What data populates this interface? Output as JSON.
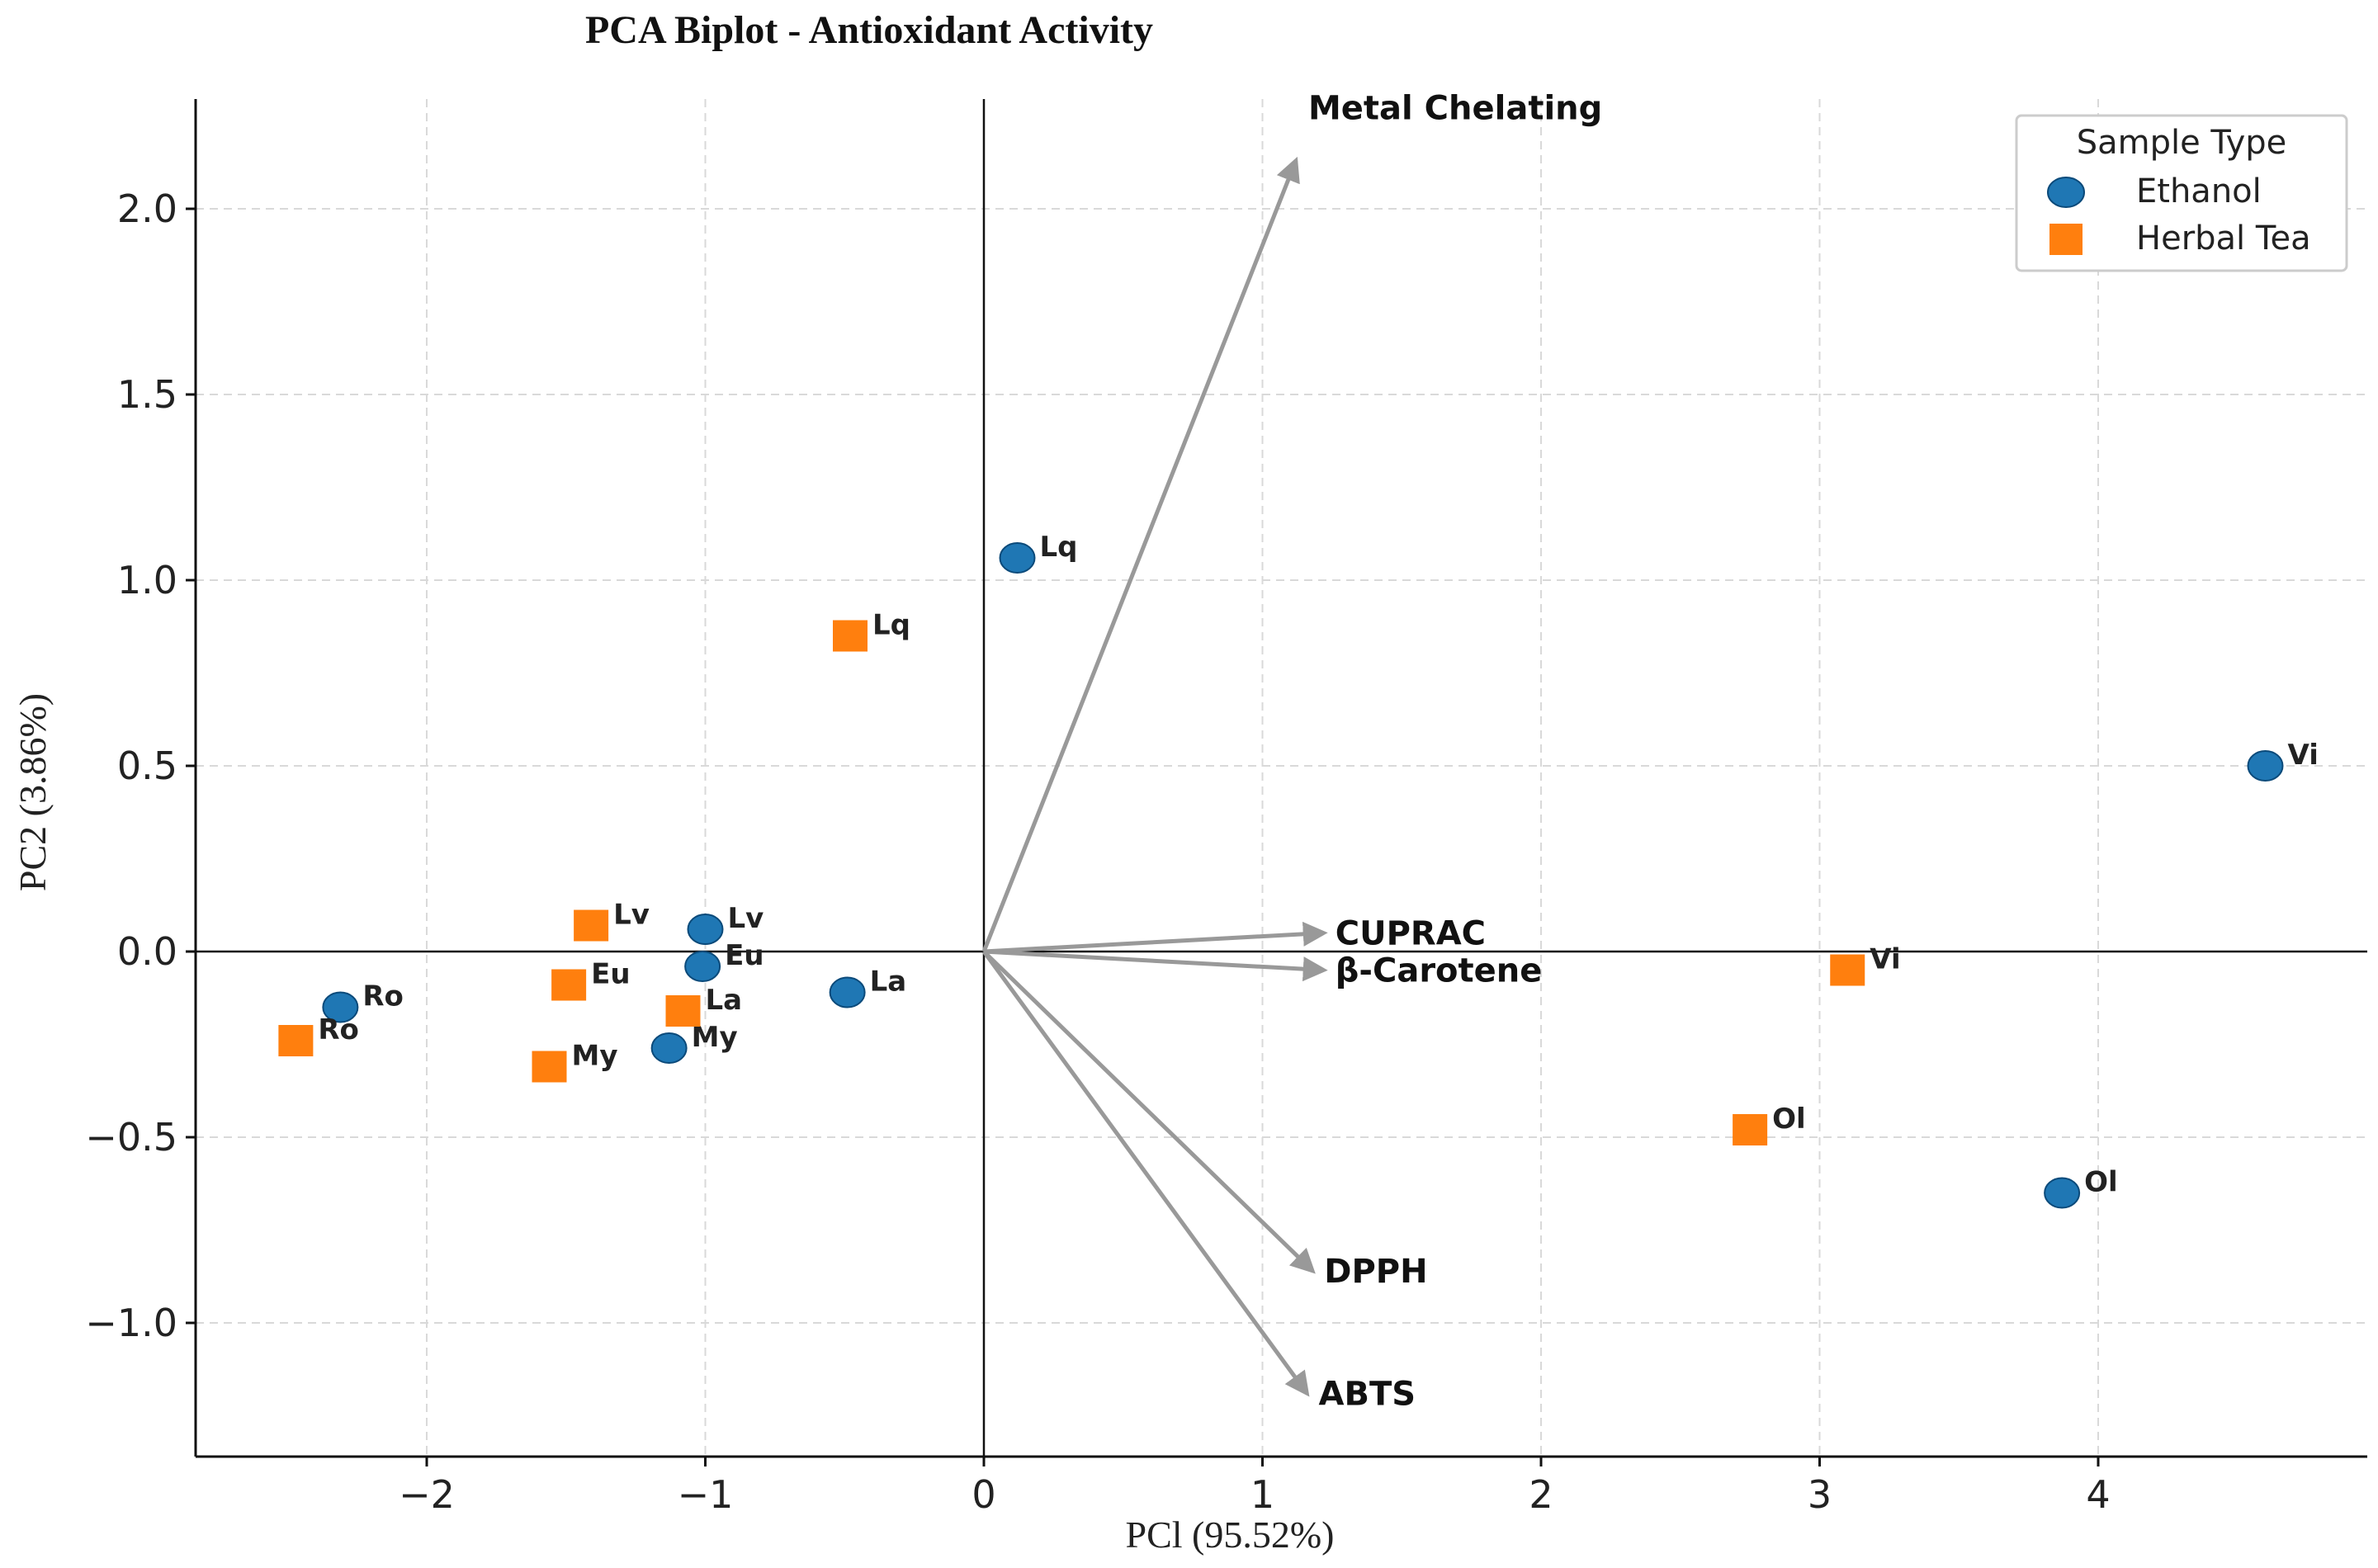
{
  "chart_data": {
    "type": "scatter",
    "subtype": "pca-biplot",
    "title": "PCA Biplot - Antioxidant Activity",
    "xlabel": "PCl (95.52%)",
    "ylabel": "PC2 (3.86%)",
    "xlim": [
      -2.8,
      5.0
    ],
    "ylim": [
      -1.35,
      2.3
    ],
    "xticks": [
      -2,
      -1,
      0,
      1,
      2,
      3,
      4
    ],
    "xtick_labels": [
      "−2",
      "−1",
      "0",
      "1",
      "2",
      "3",
      "4"
    ],
    "yticks": [
      -1.0,
      -0.5,
      0.0,
      0.5,
      1.0,
      1.5,
      2.0
    ],
    "ytick_labels": [
      "−1.0",
      "−0.5",
      "0.0",
      "0.5",
      "1.0",
      "1.5",
      "2.0"
    ],
    "grid": true,
    "legend": {
      "title": "Sample Type",
      "placement": "top-right",
      "entries": [
        {
          "name": "Ethanol",
          "marker": "circle",
          "color": "#1f77b4"
        },
        {
          "name": "Herbal Tea",
          "marker": "square",
          "color": "#ff7f0e"
        }
      ]
    },
    "series": [
      {
        "name": "Ethanol",
        "marker": "circle",
        "color": "#1f77b4",
        "points": [
          {
            "label": "Lq",
            "x": 0.12,
            "y": 1.06
          },
          {
            "label": "Vi",
            "x": 4.6,
            "y": 0.5
          },
          {
            "label": "Lv",
            "x": -1.0,
            "y": 0.06
          },
          {
            "label": "Eu",
            "x": -1.01,
            "y": -0.04
          },
          {
            "label": "La",
            "x": -0.49,
            "y": -0.11
          },
          {
            "label": "Ro",
            "x": -2.31,
            "y": -0.15
          },
          {
            "label": "My",
            "x": -1.13,
            "y": -0.26
          },
          {
            "label": "Ol",
            "x": 3.87,
            "y": -0.65
          }
        ]
      },
      {
        "name": "Herbal Tea",
        "marker": "square",
        "color": "#ff7f0e",
        "points": [
          {
            "label": "Lq",
            "x": -0.48,
            "y": 0.85
          },
          {
            "label": "Lv",
            "x": -1.41,
            "y": 0.07
          },
          {
            "label": "Eu",
            "x": -1.49,
            "y": -0.09
          },
          {
            "label": "La",
            "x": -1.08,
            "y": -0.16
          },
          {
            "label": "Ro",
            "x": -2.47,
            "y": -0.24
          },
          {
            "label": "My",
            "x": -1.56,
            "y": -0.31
          },
          {
            "label": "Vi",
            "x": 3.1,
            "y": -0.05
          },
          {
            "label": "Ol",
            "x": 2.75,
            "y": -0.48
          }
        ]
      }
    ],
    "loadings": [
      {
        "name": "Metal Chelating",
        "x": 1.12,
        "y": 2.13
      },
      {
        "name": "CUPRAC",
        "x": 1.22,
        "y": 0.05
      },
      {
        "name": "β-Carotene",
        "x": 1.22,
        "y": -0.05
      },
      {
        "name": "DPPH",
        "x": 1.18,
        "y": -0.86
      },
      {
        "name": "ABTS",
        "x": 1.16,
        "y": -1.19
      }
    ],
    "colors": {
      "loading_arrow": "#999999",
      "grid": "#d9d9d9",
      "axis": "#111111"
    }
  }
}
